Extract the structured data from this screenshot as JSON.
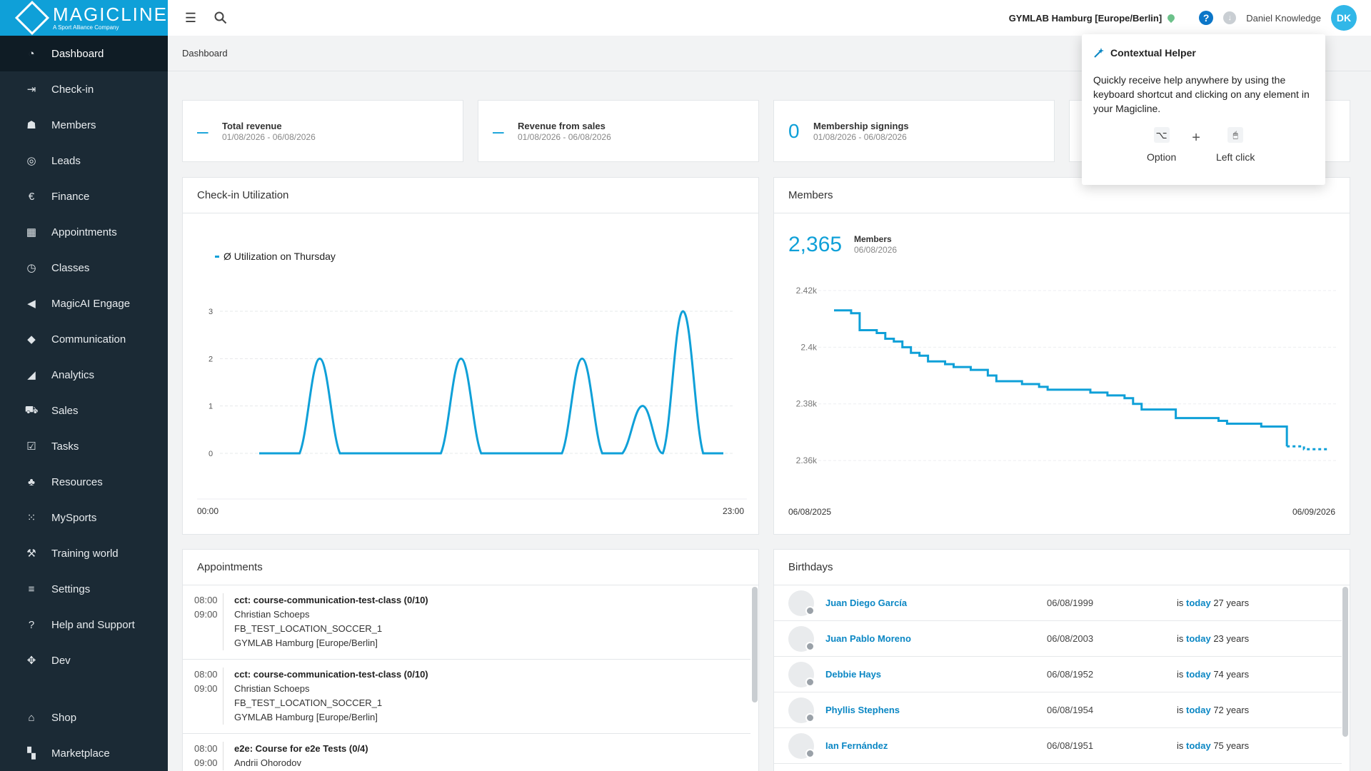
{
  "brand": {
    "name": "MAGICLINE",
    "tagline": "A Sport Alliance Company"
  },
  "sidebar": {
    "items": [
      {
        "label": "Dashboard",
        "icon": "dashboard-icon",
        "glyph": "◔",
        "active": true
      },
      {
        "label": "Check-in",
        "icon": "check-in-icon",
        "glyph": "⇥"
      },
      {
        "label": "Members",
        "icon": "members-icon",
        "glyph": "☗"
      },
      {
        "label": "Leads",
        "icon": "leads-icon",
        "glyph": "◎"
      },
      {
        "label": "Finance",
        "icon": "finance-icon",
        "glyph": "€"
      },
      {
        "label": "Appointments",
        "icon": "calendar-icon",
        "glyph": "▦"
      },
      {
        "label": "Classes",
        "icon": "classes-icon",
        "glyph": "◷"
      },
      {
        "label": "MagicAI Engage",
        "icon": "megaphone-icon",
        "glyph": "◀"
      },
      {
        "label": "Communication",
        "icon": "chat-icon",
        "glyph": "◆"
      },
      {
        "label": "Analytics",
        "icon": "analytics-icon",
        "glyph": "◢"
      },
      {
        "label": "Sales",
        "icon": "cart-icon",
        "glyph": "⛟"
      },
      {
        "label": "Tasks",
        "icon": "tasks-icon",
        "glyph": "☑"
      },
      {
        "label": "Resources",
        "icon": "resources-icon",
        "glyph": "♣"
      },
      {
        "label": "MySports",
        "icon": "mysports-icon",
        "glyph": "⁙"
      },
      {
        "label": "Training world",
        "icon": "dumbbell-icon",
        "glyph": "⚒"
      },
      {
        "label": "Settings",
        "icon": "settings-icon",
        "glyph": "≡"
      },
      {
        "label": "Help and Support",
        "icon": "help-support-icon",
        "glyph": "?"
      },
      {
        "label": "Dev",
        "icon": "dev-icon",
        "glyph": "✥"
      }
    ],
    "bottom_items": [
      {
        "label": "Shop",
        "icon": "shop-icon",
        "glyph": "⌂"
      },
      {
        "label": "Marketplace",
        "icon": "marketplace-icon",
        "glyph": "▚"
      }
    ]
  },
  "topbar": {
    "location": "GYMLAB Hamburg [Europe/Berlin]",
    "user": "Daniel Knowledge",
    "initials": "DK",
    "help": "?",
    "download": "↓"
  },
  "breadcrumb": "Dashboard",
  "kpis": [
    {
      "value": "–",
      "title": "Total revenue",
      "date": "01/08/2026 - 06/08/2026"
    },
    {
      "value": "–",
      "title": "Revenue from sales",
      "date": "01/08/2026 - 06/08/2026"
    },
    {
      "value": "0",
      "title": "Membership signings",
      "date": "01/08/2026 - 06/08/2026"
    }
  ],
  "checkin": {
    "title": "Check-in Utilization",
    "legend": "Ø Utilization on Thursday",
    "x_start": "00:00",
    "x_end": "23:00"
  },
  "members": {
    "title": "Members",
    "count": "2,365",
    "label": "Members",
    "date": "06/08/2026",
    "x_start": "06/08/2025",
    "x_end": "06/09/2026"
  },
  "chart_data": [
    {
      "type": "line",
      "title": "Check-in Utilization",
      "series": [
        {
          "name": "Ø Utilization on Thursday",
          "values": [
            0,
            0,
            0,
            2,
            0,
            0,
            0,
            0,
            0,
            0,
            2,
            0,
            0,
            0,
            0,
            0,
            2,
            0,
            0,
            1,
            0,
            3,
            0,
            0
          ]
        }
      ],
      "x": [
        "00:00",
        "01:00",
        "02:00",
        "03:00",
        "04:00",
        "05:00",
        "06:00",
        "07:00",
        "08:00",
        "09:00",
        "10:00",
        "11:00",
        "12:00",
        "13:00",
        "14:00",
        "15:00",
        "16:00",
        "17:00",
        "18:00",
        "19:00",
        "20:00",
        "21:00",
        "22:00",
        "23:00"
      ],
      "yticks": [
        0,
        1,
        2,
        3
      ],
      "ylim": [
        0,
        3
      ]
    },
    {
      "type": "line",
      "title": "Members",
      "ylim": [
        2357,
        2420
      ],
      "yticks": [
        "2.36k",
        "2.38k",
        "2.4k",
        "2.42k"
      ],
      "xlabels": [
        "06/08/2025",
        "06/09/2026"
      ],
      "series": [
        {
          "values": [
            2413,
            2413,
            2412,
            2406,
            2406,
            2405,
            2403,
            2402,
            2400,
            2398,
            2397,
            2395,
            2395,
            2394,
            2393,
            2393,
            2392,
            2392,
            2390,
            2388,
            2388,
            2388,
            2387,
            2387,
            2386,
            2385,
            2385,
            2385,
            2385,
            2385,
            2384,
            2384,
            2383,
            2383,
            2382,
            2380,
            2378,
            2378,
            2378,
            2378,
            2375,
            2375,
            2375,
            2375,
            2375,
            2374,
            2373,
            2373,
            2373,
            2373,
            2372,
            2372,
            2372,
            2365,
            2365,
            2364,
            2364,
            2364,
            2364
          ]
        }
      ]
    }
  ],
  "appointments": {
    "title": "Appointments",
    "items": [
      {
        "start": "08:00",
        "end": "09:00",
        "title": "cct: course-communication-test-class (0/10)",
        "person": "Christian Schoeps",
        "resource": "FB_TEST_LOCATION_SOCCER_1",
        "location": "GYMLAB Hamburg [Europe/Berlin]"
      },
      {
        "start": "08:00",
        "end": "09:00",
        "title": "cct: course-communication-test-class (0/10)",
        "person": "Christian Schoeps",
        "resource": "FB_TEST_LOCATION_SOCCER_1",
        "location": "GYMLAB Hamburg [Europe/Berlin]"
      },
      {
        "start": "08:00",
        "end": "09:00",
        "title": "e2e: Course for e2e Tests (0/4)",
        "person": "Andrii Ohorodov",
        "resource": "",
        "location": ""
      }
    ]
  },
  "birthdays": {
    "title": "Birthdays",
    "prefix": "is",
    "today": "today",
    "items": [
      {
        "name": "Juan Diego García",
        "date": "06/08/1999",
        "years": "27 years"
      },
      {
        "name": "Juan Pablo Moreno",
        "date": "06/08/2003",
        "years": "23 years"
      },
      {
        "name": "Debbie Hays",
        "date": "06/08/1952",
        "years": "74 years"
      },
      {
        "name": "Phyllis Stephens",
        "date": "06/08/1954",
        "years": "72 years"
      },
      {
        "name": "Ian Fernández",
        "date": "06/08/1951",
        "years": "75 years"
      }
    ]
  },
  "helper": {
    "title": "Contextual Helper",
    "text": "Quickly receive help anywhere by using the keyboard shortcut and clicking on any element in your Magicline.",
    "key1": "Option",
    "key1_glyph": "⌥",
    "plus": "+",
    "key2": "Left click",
    "key2_glyph": "🖱"
  },
  "colors": {
    "accent": "#0fa0d8",
    "sidebar": "#1b2a35",
    "link": "#0b87c4"
  }
}
